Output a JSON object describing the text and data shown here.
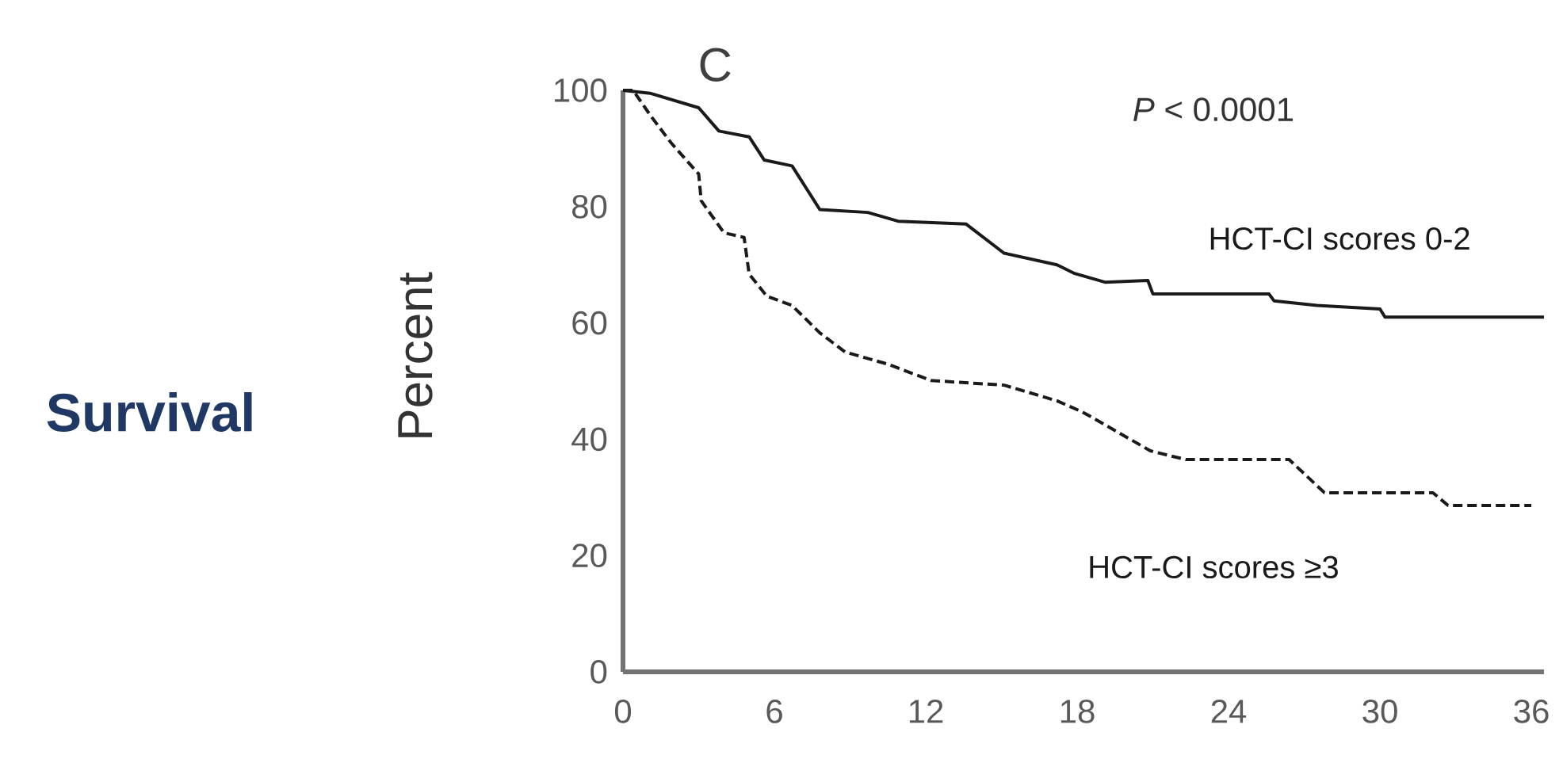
{
  "chart_data": {
    "type": "line",
    "title": "C",
    "ylabel": "Percent",
    "annotations": [
      "Survival",
      "*P* < 0.0001"
    ],
    "xlim": [
      0,
      36.5
    ],
    "ylim": [
      0,
      100
    ],
    "xticks": [
      0,
      6,
      12,
      18,
      24,
      30,
      36
    ],
    "yticks": [
      0,
      20,
      40,
      60,
      80,
      100
    ],
    "grid": false,
    "legend": false,
    "series": [
      {
        "name": "HCT-CI scores 0-2",
        "color": "#1a1a1a",
        "line_style": "solid",
        "x": [
          0,
          1.07,
          3.0,
          3.8,
          5.0,
          5.6,
          6.7,
          7.8,
          9.7,
          10.9,
          13.6,
          15.1,
          17.2,
          17.9,
          19.1,
          20.8,
          21.0,
          25.6,
          25.8,
          27.5,
          30.0,
          30.2,
          36.5
        ],
        "values": [
          100,
          99.5,
          97,
          93,
          92,
          88,
          87,
          79.5,
          79,
          77.5,
          77,
          72,
          70,
          68.5,
          67,
          67.3,
          65,
          65,
          63.8,
          63,
          62.4,
          61,
          61
        ]
      },
      {
        "name": "HCT-CI scores ≥3",
        "color": "#1a1a1a",
        "line_style": "dashed",
        "x": [
          0,
          0.4,
          1.1,
          1.9,
          3.0,
          3.1,
          4.0,
          4.8,
          5.0,
          5.7,
          6.7,
          7.8,
          8.8,
          10.5,
          12.2,
          15.1,
          17.2,
          18.2,
          19.1,
          20.9,
          22.3,
          26.4,
          27.8,
          32.1,
          32.7,
          36.0
        ],
        "values": [
          100,
          100,
          95.6,
          91,
          85.6,
          81,
          75.5,
          74.7,
          68.4,
          64.6,
          63,
          58.3,
          55,
          52.9,
          50.1,
          49.3,
          46.6,
          44.7,
          42.5,
          38,
          36.5,
          36.5,
          30.8,
          30.8,
          28.6,
          28.6
        ]
      }
    ]
  }
}
